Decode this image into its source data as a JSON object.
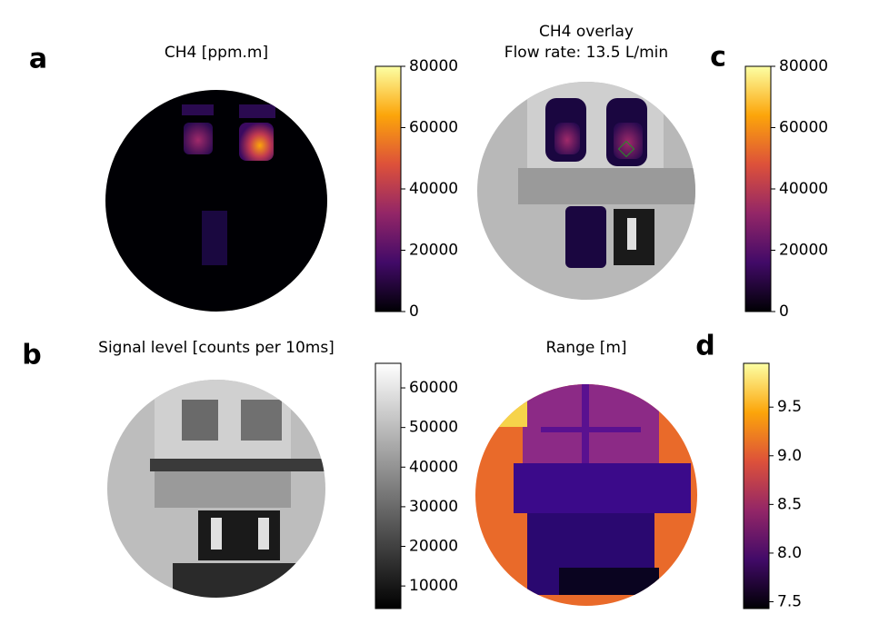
{
  "chart_data": [
    {
      "type": "image",
      "panel": "a",
      "title": [
        "CH4 [ppm.m]"
      ],
      "colormap": "inferno",
      "clim": [
        0,
        80000
      ],
      "cticks": [
        0,
        20000,
        40000,
        60000,
        80000
      ]
    },
    {
      "type": "image",
      "panel": "b",
      "title": [
        "Signal level [counts per 10ms]"
      ],
      "colormap": "gray",
      "clim": [
        4300,
        66200
      ],
      "cticks": [
        10000,
        20000,
        30000,
        40000,
        50000,
        60000
      ]
    },
    {
      "type": "image",
      "panel": "c",
      "title": [
        "CH4 overlay",
        "Flow rate: 13.5 L/min"
      ],
      "colormap": "inferno",
      "clim": [
        0,
        80000
      ],
      "cticks": [
        0,
        20000,
        40000,
        60000,
        80000
      ]
    },
    {
      "type": "image",
      "panel": "d",
      "title": [
        "Range [m]"
      ],
      "colormap": "inferno",
      "clim": [
        7.43,
        9.95
      ],
      "cticks": [
        7.5,
        {
          "value": 8,
          "label": "8.0"
        },
        8.5,
        {
          "value": 9,
          "label": "9.0"
        },
        9.5
      ]
    }
  ]
}
